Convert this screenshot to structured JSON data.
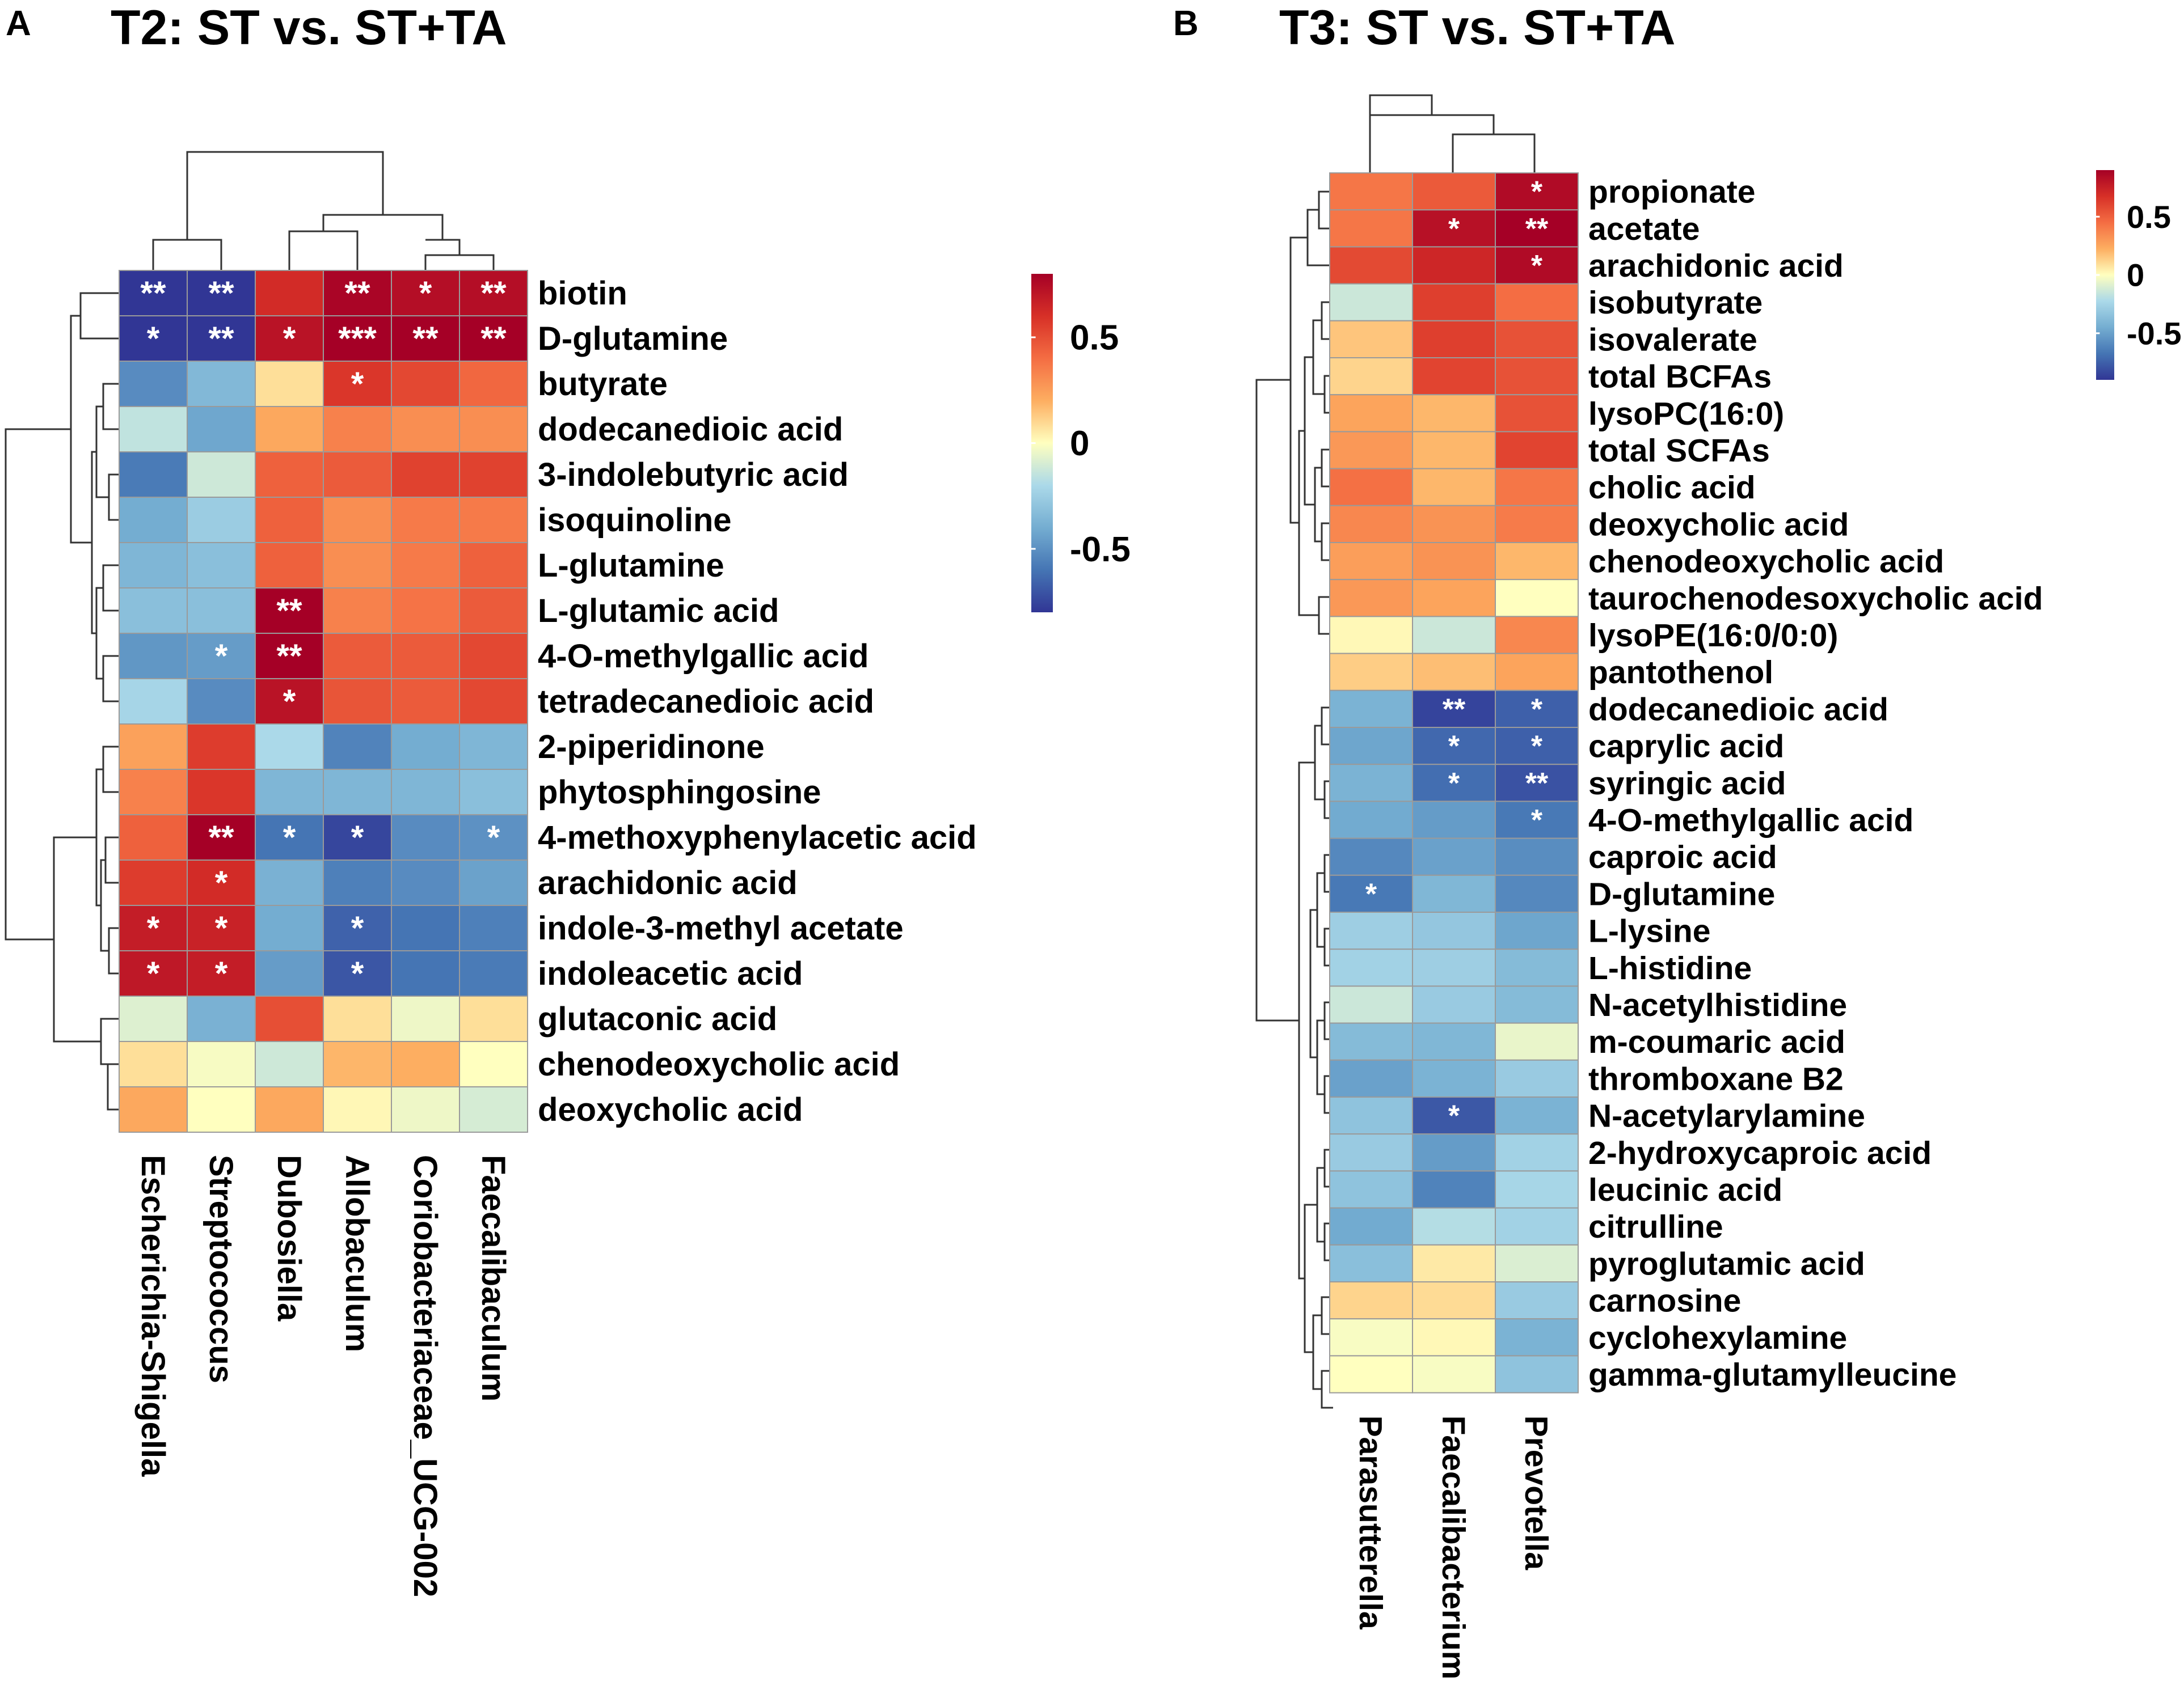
{
  "chart_data": [
    {
      "type": "heatmap",
      "panel_label": "A",
      "title": "T2: ST vs. ST+TA",
      "columns": [
        "Escherichia-Shigella",
        "Streptococcus",
        "Dubosiella",
        "Allobaculum",
        "Coriobacteriaceae_UCG-002",
        "Faecalibaculum"
      ],
      "rows": [
        "biotin",
        "D-glutamine",
        "butyrate",
        "dodecanedioic acid",
        "3-indolebutyric acid",
        "isoquinoline",
        "L-glutamine",
        "L-glutamic acid",
        "4-O-methylgallic acid",
        "tetradecanedioic acid",
        "2-piperidinone",
        "phytosphingosine",
        "4-methoxyphenylacetic acid",
        "arachidonic acid",
        "indole-3-methyl acetate",
        "indoleacetic acid",
        "glutaconic acid",
        "chenodeoxycholic acid",
        "deoxycholic acid"
      ],
      "values": [
        [
          -0.82,
          -0.82,
          0.62,
          0.78,
          0.74,
          0.74
        ],
        [
          -0.8,
          -0.82,
          0.72,
          0.88,
          0.82,
          0.82
        ],
        [
          -0.52,
          -0.35,
          0.08,
          0.58,
          0.52,
          0.42
        ],
        [
          -0.15,
          -0.42,
          0.22,
          0.34,
          0.3,
          0.3
        ],
        [
          -0.58,
          -0.12,
          0.44,
          0.46,
          0.54,
          0.54
        ],
        [
          -0.4,
          -0.26,
          0.44,
          0.3,
          0.36,
          0.36
        ],
        [
          -0.36,
          -0.32,
          0.44,
          0.3,
          0.36,
          0.44
        ],
        [
          -0.32,
          -0.32,
          0.85,
          0.34,
          0.38,
          0.46
        ],
        [
          -0.48,
          -0.46,
          0.85,
          0.46,
          0.46,
          0.52
        ],
        [
          -0.22,
          -0.52,
          0.72,
          0.48,
          0.46,
          0.52
        ],
        [
          0.24,
          0.56,
          -0.2,
          -0.55,
          -0.4,
          -0.36
        ],
        [
          0.34,
          0.58,
          -0.36,
          -0.36,
          -0.36,
          -0.32
        ],
        [
          0.44,
          0.8,
          -0.6,
          -0.75,
          -0.52,
          -0.5
        ],
        [
          0.56,
          0.62,
          -0.38,
          -0.56,
          -0.52,
          -0.44
        ],
        [
          0.68,
          0.66,
          -0.4,
          -0.66,
          -0.6,
          -0.56
        ],
        [
          0.7,
          0.68,
          -0.46,
          -0.7,
          -0.6,
          -0.58
        ],
        [
          -0.08,
          -0.38,
          0.5,
          0.08,
          -0.04,
          0.08
        ],
        [
          0.08,
          -0.02,
          -0.12,
          0.18,
          0.2,
          0.0
        ],
        [
          0.22,
          0.0,
          0.22,
          0.02,
          -0.04,
          -0.1
        ]
      ],
      "significance": [
        [
          "**",
          "**",
          "",
          "**",
          "*",
          "**"
        ],
        [
          "*",
          "**",
          "*",
          "***",
          "**",
          "**"
        ],
        [
          "",
          "",
          "",
          "*",
          "",
          ""
        ],
        [
          "",
          "",
          "",
          "",
          "",
          ""
        ],
        [
          "",
          "",
          "",
          "",
          "",
          ""
        ],
        [
          "",
          "",
          "",
          "",
          "",
          ""
        ],
        [
          "",
          "",
          "",
          "",
          "",
          ""
        ],
        [
          "",
          "",
          "**",
          "",
          "",
          ""
        ],
        [
          "",
          "*",
          "**",
          "",
          "",
          ""
        ],
        [
          "",
          "",
          "*",
          "",
          "",
          ""
        ],
        [
          "",
          "",
          "",
          "",
          "",
          ""
        ],
        [
          "",
          "",
          "",
          "",
          "",
          ""
        ],
        [
          "",
          "**",
          "*",
          "*",
          "",
          "*"
        ],
        [
          "",
          "*",
          "",
          "",
          "",
          ""
        ],
        [
          "*",
          "*",
          "",
          "*",
          "",
          ""
        ],
        [
          "*",
          "*",
          "",
          "*",
          "",
          ""
        ],
        [
          "",
          "",
          "",
          "",
          "",
          ""
        ],
        [
          "",
          "",
          "",
          "",
          "",
          ""
        ],
        [
          "",
          "",
          "",
          "",
          "",
          ""
        ]
      ],
      "colorbar": {
        "range": [
          -0.8,
          0.8
        ],
        "ticks": [
          0.5,
          0,
          -0.5
        ],
        "tick_labels": [
          "0.5",
          "0",
          "-0.5"
        ]
      }
    },
    {
      "type": "heatmap",
      "panel_label": "B",
      "title": "T3: ST vs. ST+TA",
      "columns": [
        "Parasutterella",
        "Faecalibacterium",
        "Prevotella"
      ],
      "rows": [
        "propionate",
        "acetate",
        "arachidonic acid",
        "isobutyrate",
        "isovalerate",
        "total BCFAs",
        "lysoPC(16:0)",
        "total SCFAs",
        "cholic acid",
        "deoxycholic acid",
        "chenodeoxycholic acid",
        "taurochenodesoxycholic acid",
        "lysoPE(16:0/0:0)",
        "pantothenol",
        "dodecanedioic acid",
        "caprylic acid",
        "syringic acid",
        "4-O-methylgallic acid",
        "caproic acid",
        "D-glutamine",
        "L-lysine",
        "L-histidine",
        "N-acetylhistidine",
        "m-coumaric acid",
        "thromboxane B2",
        "N-acetylarylamine",
        "2-hydroxycaproic acid",
        "leucinic acid",
        "citrulline",
        "pyroglutamic acid",
        "carnosine",
        "cyclohexylamine",
        "gamma-glutamylleucine"
      ],
      "values": [
        [
          0.42,
          0.52,
          0.85
        ],
        [
          0.42,
          0.82,
          0.9
        ],
        [
          0.58,
          0.72,
          0.85
        ],
        [
          -0.14,
          0.62,
          0.45
        ],
        [
          0.16,
          0.62,
          0.55
        ],
        [
          0.12,
          0.6,
          0.55
        ],
        [
          0.26,
          0.2,
          0.55
        ],
        [
          0.3,
          0.2,
          0.6
        ],
        [
          0.44,
          0.2,
          0.42
        ],
        [
          0.36,
          0.32,
          0.4
        ],
        [
          0.28,
          0.32,
          0.2
        ],
        [
          0.3,
          0.26,
          0.0
        ],
        [
          0.02,
          -0.14,
          0.36
        ],
        [
          0.14,
          0.18,
          0.26
        ],
        [
          -0.42,
          -0.85,
          -0.75
        ],
        [
          -0.48,
          -0.72,
          -0.75
        ],
        [
          -0.42,
          -0.7,
          -0.8
        ],
        [
          -0.46,
          -0.52,
          -0.66
        ],
        [
          -0.6,
          -0.5,
          -0.58
        ],
        [
          -0.66,
          -0.4,
          -0.6
        ],
        [
          -0.28,
          -0.32,
          -0.48
        ],
        [
          -0.26,
          -0.28,
          -0.38
        ],
        [
          -0.14,
          -0.3,
          -0.38
        ],
        [
          -0.38,
          -0.4,
          -0.06
        ],
        [
          -0.5,
          -0.42,
          -0.3
        ],
        [
          -0.34,
          -0.78,
          -0.42
        ],
        [
          -0.3,
          -0.52,
          -0.26
        ],
        [
          -0.34,
          -0.62,
          -0.24
        ],
        [
          -0.46,
          -0.2,
          -0.26
        ],
        [
          -0.36,
          0.06,
          -0.1
        ],
        [
          0.12,
          0.1,
          -0.3
        ],
        [
          -0.02,
          0.02,
          -0.42
        ],
        [
          0.0,
          -0.02,
          -0.34
        ]
      ],
      "significance": [
        [
          "",
          "",
          "*"
        ],
        [
          "",
          "*",
          "**"
        ],
        [
          "",
          "",
          "*"
        ],
        [
          "",
          "",
          ""
        ],
        [
          "",
          "",
          ""
        ],
        [
          "",
          "",
          ""
        ],
        [
          "",
          "",
          ""
        ],
        [
          "",
          "",
          ""
        ],
        [
          "",
          "",
          ""
        ],
        [
          "",
          "",
          ""
        ],
        [
          "",
          "",
          ""
        ],
        [
          "",
          "",
          ""
        ],
        [
          "",
          "",
          ""
        ],
        [
          "",
          "",
          ""
        ],
        [
          "",
          "**",
          "*"
        ],
        [
          "",
          "*",
          "*"
        ],
        [
          "",
          "*",
          "**"
        ],
        [
          "",
          "",
          "*"
        ],
        [
          "",
          "",
          ""
        ],
        [
          "*",
          "",
          ""
        ],
        [
          "",
          "",
          ""
        ],
        [
          "",
          "",
          ""
        ],
        [
          "",
          "",
          ""
        ],
        [
          "",
          "",
          ""
        ],
        [
          "",
          "",
          ""
        ],
        [
          "",
          "*",
          ""
        ],
        [
          "",
          "",
          ""
        ],
        [
          "",
          "",
          ""
        ],
        [
          "",
          "",
          ""
        ],
        [
          "",
          "",
          ""
        ],
        [
          "",
          "",
          ""
        ],
        [
          "",
          "",
          ""
        ],
        [
          "",
          "",
          ""
        ]
      ],
      "colorbar": {
        "range": [
          -0.9,
          0.9
        ],
        "ticks": [
          0.5,
          0,
          -0.5
        ],
        "tick_labels": [
          "0.5",
          "0",
          "-0.5"
        ]
      }
    }
  ],
  "colors": {
    "scale": [
      "#313695",
      "#4575b4",
      "#74add1",
      "#abd9e9",
      "#ffffbf",
      "#fdae61",
      "#f46d43",
      "#d73027",
      "#a50026"
    ],
    "star": "#ffffff",
    "cell_border": "#9a9a9a",
    "dendrogram": "#333333"
  }
}
